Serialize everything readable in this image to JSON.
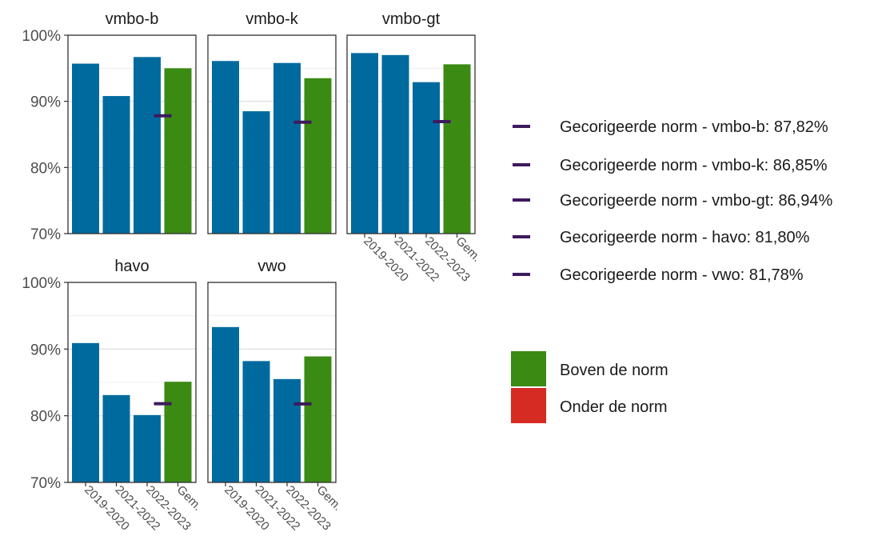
{
  "chart_data": {
    "type": "bar",
    "facets": [
      "vmbo-b",
      "vmbo-k",
      "vmbo-gt",
      "havo",
      "vwo"
    ],
    "categories": [
      "2019-2020",
      "2021-2022",
      "2022-2023",
      "Gem."
    ],
    "values": {
      "vmbo-b": [
        95.7,
        90.8,
        96.7,
        95.0
      ],
      "vmbo-k": [
        96.1,
        88.5,
        95.8,
        93.5
      ],
      "vmbo-gt": [
        97.3,
        97.0,
        92.9,
        95.6
      ],
      "havo": [
        90.9,
        83.1,
        80.1,
        85.1
      ],
      "vwo": [
        93.3,
        88.2,
        85.5,
        88.9
      ]
    },
    "norms": {
      "vmbo-b": 87.82,
      "vmbo-k": 86.85,
      "vmbo-gt": 86.94,
      "havo": 81.8,
      "vwo": 81.78
    },
    "ylim": [
      70,
      100
    ],
    "yticks": [
      70,
      80,
      90,
      100
    ],
    "ytick_labels": [
      "70%",
      "80%",
      "90%",
      "100%"
    ],
    "legend_norm_entries": [
      "Gecorigeerde norm - vmbo-b: 87,82%",
      "Gecorigeerde norm - vmbo-k: 86,85%",
      "Gecorigeerde norm - vmbo-gt: 86,94%",
      "Gecorigeerde norm - havo: 81,80%",
      "Gecorigeerde norm - vwo: 81,78%"
    ],
    "legend_fill_entries": [
      {
        "label": "Boven de norm",
        "color": "#3b8a14"
      },
      {
        "label": "Onder de norm",
        "color": "#d52b22"
      }
    ],
    "colors": {
      "year_bar": "#006a9e",
      "above_norm": "#3b8a14",
      "below_norm": "#d52b22",
      "norm_marker": "#3d1a5e"
    },
    "grid": true,
    "legend_position": "right"
  }
}
